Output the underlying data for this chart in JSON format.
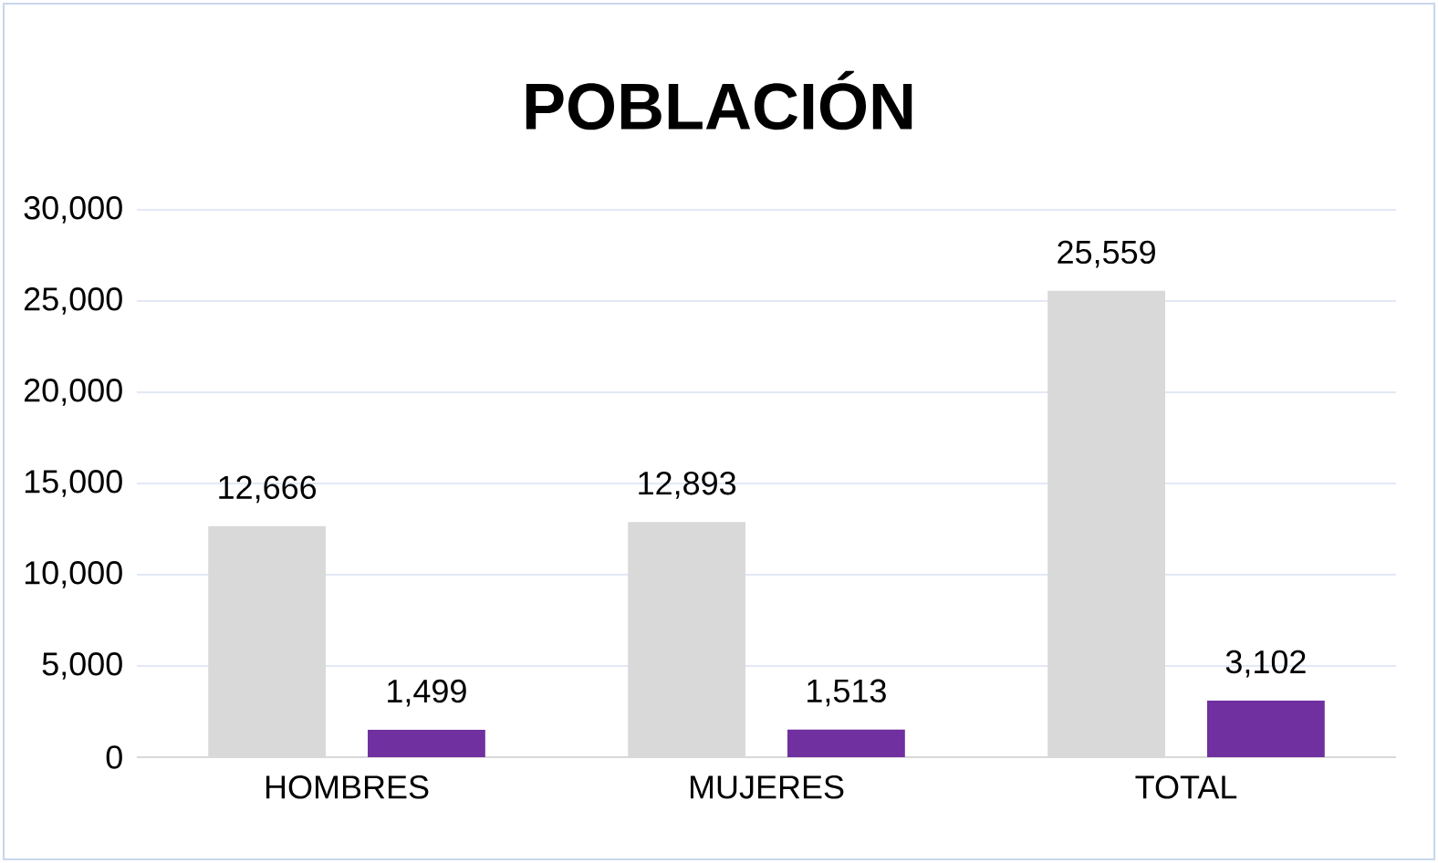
{
  "chart_data": {
    "type": "bar",
    "title": "POBLACIÓN",
    "categories": [
      "HOMBRES",
      "MUJERES",
      "TOTAL"
    ],
    "series": [
      {
        "color": "#d9d9d9",
        "values": [
          12666,
          12893,
          25559
        ],
        "value_labels": [
          "12,666",
          "12,893",
          "25,559"
        ]
      },
      {
        "color": "#7030a0",
        "values": [
          1499,
          1513,
          3102
        ],
        "value_labels": [
          "1,499",
          "1,513",
          "3,102"
        ]
      }
    ],
    "ylim": [
      0,
      30000
    ],
    "yticks": [
      {
        "value": 0,
        "label": "0"
      },
      {
        "value": 5000,
        "label": "5,000"
      },
      {
        "value": 10000,
        "label": "10,000"
      },
      {
        "value": 15000,
        "label": "15,000"
      },
      {
        "value": 20000,
        "label": "20,000"
      },
      {
        "value": 25000,
        "label": "25,000"
      },
      {
        "value": 30000,
        "label": "30,000"
      }
    ],
    "grid": "y"
  }
}
